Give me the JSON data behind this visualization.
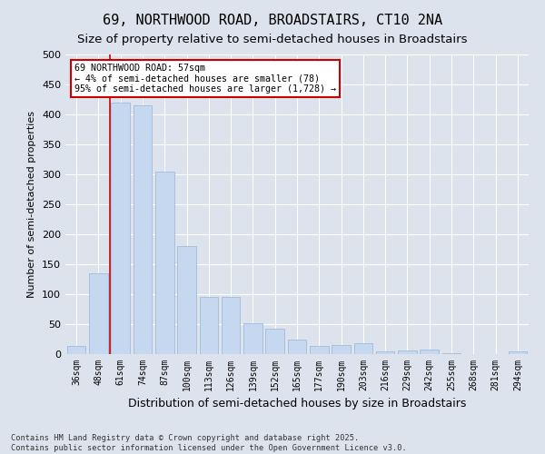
{
  "title": "69, NORTHWOOD ROAD, BROADSTAIRS, CT10 2NA",
  "subtitle": "Size of property relative to semi-detached houses in Broadstairs",
  "xlabel": "Distribution of semi-detached houses by size in Broadstairs",
  "ylabel": "Number of semi-detached properties",
  "categories": [
    "36sqm",
    "48sqm",
    "61sqm",
    "74sqm",
    "87sqm",
    "100sqm",
    "113sqm",
    "126sqm",
    "139sqm",
    "152sqm",
    "165sqm",
    "177sqm",
    "190sqm",
    "203sqm",
    "216sqm",
    "229sqm",
    "242sqm",
    "255sqm",
    "268sqm",
    "281sqm",
    "294sqm"
  ],
  "values": [
    14,
    135,
    420,
    415,
    305,
    180,
    95,
    95,
    52,
    42,
    25,
    14,
    15,
    18,
    5,
    6,
    7,
    2,
    0,
    0,
    4
  ],
  "bar_color": "#c5d8f0",
  "bar_edge_color": "#a0bbdb",
  "vline_color": "#cc0000",
  "vline_x": 1.5,
  "annotation_text": "69 NORTHWOOD ROAD: 57sqm\n← 4% of semi-detached houses are smaller (78)\n95% of semi-detached houses are larger (1,728) →",
  "annotation_box_color": "white",
  "annotation_box_edge": "#cc0000",
  "ylim": [
    0,
    500
  ],
  "yticks": [
    0,
    50,
    100,
    150,
    200,
    250,
    300,
    350,
    400,
    450,
    500
  ],
  "background_color": "#dde3ed",
  "plot_bg_color": "#dde3ed",
  "grid_color": "white",
  "title_fontsize": 11,
  "subtitle_fontsize": 9.5,
  "ylabel_fontsize": 8,
  "xlabel_fontsize": 9,
  "tick_fontsize": 7,
  "ytick_fontsize": 8,
  "footer_text": "Contains HM Land Registry data © Crown copyright and database right 2025.\nContains public sector information licensed under the Open Government Licence v3.0."
}
